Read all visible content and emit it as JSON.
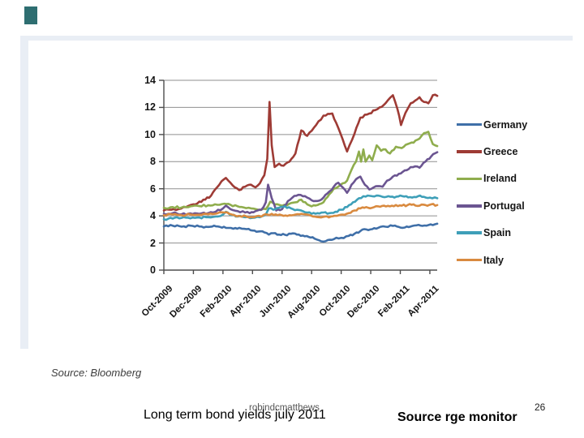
{
  "slide": {
    "accent_square_color": "#2e6e71",
    "frame_color": "#e9eef5",
    "background_color": "#ffffff"
  },
  "chart_data": {
    "type": "line",
    "title": "",
    "xlabel": "",
    "ylabel": "",
    "ylim": [
      0,
      14
    ],
    "yticks": [
      0,
      2,
      4,
      6,
      8,
      10,
      12,
      14
    ],
    "xtick_labels": [
      "Oct-2009",
      "Dec-2009",
      "Feb-2010",
      "Apr-2010",
      "Jun-2010",
      "Aug-2010",
      "Oct-2010",
      "Dec-2010",
      "Feb-2011",
      "Apr-2011"
    ],
    "x_unit": "months_since_Oct_2009_two_months_per_tick",
    "grid": "horizontal",
    "grid_color": "#8f8f8f",
    "axis_color": "#4d4d4d",
    "legend_position": "right",
    "series": [
      {
        "name": "Germany",
        "color": "#3F6FA8",
        "points": [
          [
            0,
            3.22
          ],
          [
            0.6,
            3.28
          ],
          [
            1.2,
            3.2
          ],
          [
            1.8,
            3.28
          ],
          [
            2.4,
            3.22
          ],
          [
            3,
            3.18
          ],
          [
            3.4,
            3.28
          ],
          [
            3.8,
            3.18
          ],
          [
            4.2,
            3.12
          ],
          [
            4.7,
            3.05
          ],
          [
            5.1,
            3.12
          ],
          [
            5.6,
            3.02
          ],
          [
            6,
            2.92
          ],
          [
            6.4,
            2.85
          ],
          [
            6.8,
            2.78
          ],
          [
            7.1,
            2.62
          ],
          [
            7.4,
            2.72
          ],
          [
            7.8,
            2.62
          ],
          [
            8.2,
            2.6
          ],
          [
            8.6,
            2.68
          ],
          [
            9,
            2.62
          ],
          [
            9.4,
            2.55
          ],
          [
            9.8,
            2.45
          ],
          [
            10.2,
            2.32
          ],
          [
            10.5,
            2.2
          ],
          [
            10.8,
            2.1
          ],
          [
            11.1,
            2.22
          ],
          [
            11.5,
            2.28
          ],
          [
            12,
            2.38
          ],
          [
            12.5,
            2.52
          ],
          [
            12.9,
            2.68
          ],
          [
            13.3,
            2.88
          ],
          [
            13.7,
            3.0
          ],
          [
            14.1,
            3.02
          ],
          [
            14.5,
            3.12
          ],
          [
            15,
            3.2
          ],
          [
            15.5,
            3.26
          ],
          [
            15.9,
            3.18
          ],
          [
            16.3,
            3.14
          ],
          [
            16.7,
            3.22
          ],
          [
            17.1,
            3.3
          ],
          [
            17.5,
            3.26
          ],
          [
            17.9,
            3.32
          ],
          [
            18.5,
            3.42
          ]
        ]
      },
      {
        "name": "Greece",
        "color": "#9E3B35",
        "points": [
          [
            0,
            4.4
          ],
          [
            0.5,
            4.45
          ],
          [
            1,
            4.5
          ],
          [
            1.5,
            4.65
          ],
          [
            2,
            4.85
          ],
          [
            2.4,
            5.05
          ],
          [
            2.8,
            5.2
          ],
          [
            3.2,
            5.5
          ],
          [
            3.6,
            6.1
          ],
          [
            3.9,
            6.55
          ],
          [
            4.2,
            6.8
          ],
          [
            4.5,
            6.45
          ],
          [
            4.8,
            6.1
          ],
          [
            5.1,
            5.9
          ],
          [
            5.5,
            6.15
          ],
          [
            5.9,
            6.3
          ],
          [
            6.2,
            6.1
          ],
          [
            6.5,
            6.4
          ],
          [
            6.8,
            7.0
          ],
          [
            7.0,
            8.2
          ],
          [
            7.15,
            12.4
          ],
          [
            7.3,
            9.2
          ],
          [
            7.5,
            7.6
          ],
          [
            7.8,
            7.85
          ],
          [
            8.1,
            7.7
          ],
          [
            8.5,
            8.0
          ],
          [
            8.9,
            8.6
          ],
          [
            9.3,
            10.3
          ],
          [
            9.7,
            9.9
          ],
          [
            10.3,
            10.7
          ],
          [
            10.8,
            11.4
          ],
          [
            11.4,
            11.55
          ],
          [
            11.8,
            10.5
          ],
          [
            12.4,
            8.75
          ],
          [
            12.9,
            10.05
          ],
          [
            13.3,
            11.25
          ],
          [
            13.9,
            11.55
          ],
          [
            14.3,
            11.8
          ],
          [
            14.6,
            12.0
          ],
          [
            14.9,
            12.2
          ],
          [
            15.3,
            12.7
          ],
          [
            15.5,
            12.9
          ],
          [
            15.8,
            11.9
          ],
          [
            16.05,
            10.7
          ],
          [
            16.35,
            11.6
          ],
          [
            16.7,
            12.3
          ],
          [
            17.0,
            12.5
          ],
          [
            17.3,
            12.75
          ],
          [
            17.6,
            12.4
          ],
          [
            17.9,
            12.3
          ],
          [
            18.2,
            12.9
          ],
          [
            18.5,
            12.85
          ]
        ]
      },
      {
        "name": "Ireland",
        "color": "#8FAD4D",
        "points": [
          [
            0,
            4.6
          ],
          [
            0.6,
            4.65
          ],
          [
            1.2,
            4.62
          ],
          [
            1.8,
            4.7
          ],
          [
            2.4,
            4.72
          ],
          [
            3,
            4.78
          ],
          [
            3.6,
            4.82
          ],
          [
            4.1,
            4.9
          ],
          [
            4.5,
            4.82
          ],
          [
            5,
            4.7
          ],
          [
            5.4,
            4.62
          ],
          [
            5.9,
            4.55
          ],
          [
            6.4,
            4.45
          ],
          [
            6.9,
            4.5
          ],
          [
            7.2,
            5.05
          ],
          [
            7.5,
            4.85
          ],
          [
            8,
            4.75
          ],
          [
            8.5,
            4.9
          ],
          [
            8.9,
            5.0
          ],
          [
            9.3,
            5.2
          ],
          [
            9.7,
            4.85
          ],
          [
            10,
            4.7
          ],
          [
            10.4,
            4.8
          ],
          [
            10.8,
            5.0
          ],
          [
            11.2,
            5.6
          ],
          [
            11.5,
            6.0
          ],
          [
            11.8,
            6.15
          ],
          [
            12.1,
            6.4
          ],
          [
            12.4,
            6.6
          ],
          [
            12.7,
            7.4
          ],
          [
            13,
            8.0
          ],
          [
            13.2,
            8.75
          ],
          [
            13.35,
            8.0
          ],
          [
            13.5,
            8.9
          ],
          [
            13.65,
            8.0
          ],
          [
            13.9,
            8.45
          ],
          [
            14.1,
            8.1
          ],
          [
            14.4,
            9.2
          ],
          [
            14.7,
            8.8
          ],
          [
            15,
            8.9
          ],
          [
            15.3,
            8.6
          ],
          [
            15.7,
            9.1
          ],
          [
            16.1,
            9.0
          ],
          [
            16.5,
            9.3
          ],
          [
            16.9,
            9.4
          ],
          [
            17.3,
            9.7
          ],
          [
            17.6,
            10.1
          ],
          [
            17.9,
            10.2
          ],
          [
            18.2,
            9.3
          ],
          [
            18.5,
            9.15
          ]
        ]
      },
      {
        "name": "Portugal",
        "color": "#6B5591",
        "points": [
          [
            0,
            4.15
          ],
          [
            0.6,
            4.2
          ],
          [
            1.2,
            4.12
          ],
          [
            1.8,
            4.18
          ],
          [
            2.4,
            4.15
          ],
          [
            3,
            4.2
          ],
          [
            3.5,
            4.3
          ],
          [
            4,
            4.55
          ],
          [
            4.2,
            4.75
          ],
          [
            4.5,
            4.5
          ],
          [
            5,
            4.35
          ],
          [
            5.5,
            4.25
          ],
          [
            5.8,
            4.2
          ],
          [
            6.2,
            4.35
          ],
          [
            6.6,
            4.45
          ],
          [
            6.9,
            5.0
          ],
          [
            7.05,
            6.3
          ],
          [
            7.3,
            5.3
          ],
          [
            7.6,
            4.4
          ],
          [
            8,
            4.5
          ],
          [
            8.4,
            5.1
          ],
          [
            8.7,
            5.35
          ],
          [
            9.1,
            5.55
          ],
          [
            9.4,
            5.45
          ],
          [
            9.7,
            5.35
          ],
          [
            10,
            5.15
          ],
          [
            10.4,
            5.1
          ],
          [
            10.8,
            5.35
          ],
          [
            11.2,
            5.8
          ],
          [
            11.5,
            6.15
          ],
          [
            11.8,
            6.45
          ],
          [
            12.1,
            6.1
          ],
          [
            12.4,
            5.7
          ],
          [
            12.7,
            6.3
          ],
          [
            13,
            6.7
          ],
          [
            13.3,
            6.9
          ],
          [
            13.6,
            6.3
          ],
          [
            13.9,
            5.95
          ],
          [
            14.2,
            6.1
          ],
          [
            14.5,
            6.2
          ],
          [
            14.8,
            6.15
          ],
          [
            15.1,
            6.6
          ],
          [
            15.5,
            6.9
          ],
          [
            15.9,
            7.1
          ],
          [
            16.3,
            7.35
          ],
          [
            16.7,
            7.6
          ],
          [
            17,
            7.65
          ],
          [
            17.3,
            7.55
          ],
          [
            17.7,
            8.0
          ],
          [
            18.1,
            8.4
          ],
          [
            18.5,
            8.7
          ]
        ]
      },
      {
        "name": "Spain",
        "color": "#3E9FB8",
        "points": [
          [
            0,
            3.75
          ],
          [
            0.6,
            3.8
          ],
          [
            1.2,
            3.85
          ],
          [
            1.8,
            3.82
          ],
          [
            2.4,
            3.88
          ],
          [
            3,
            3.9
          ],
          [
            3.5,
            3.95
          ],
          [
            4,
            4.1
          ],
          [
            4.2,
            4.3
          ],
          [
            4.6,
            4.05
          ],
          [
            5,
            3.95
          ],
          [
            5.5,
            3.9
          ],
          [
            6,
            3.85
          ],
          [
            6.5,
            3.9
          ],
          [
            6.9,
            4.1
          ],
          [
            7.1,
            4.55
          ],
          [
            7.4,
            4.45
          ],
          [
            7.8,
            4.6
          ],
          [
            8.2,
            4.7
          ],
          [
            8.6,
            4.55
          ],
          [
            9,
            4.45
          ],
          [
            9.4,
            4.35
          ],
          [
            9.7,
            4.25
          ],
          [
            10,
            4.15
          ],
          [
            10.4,
            4.2
          ],
          [
            10.8,
            4.25
          ],
          [
            11.2,
            4.2
          ],
          [
            11.6,
            4.3
          ],
          [
            12,
            4.45
          ],
          [
            12.4,
            4.65
          ],
          [
            12.8,
            5.0
          ],
          [
            13.2,
            5.3
          ],
          [
            13.5,
            5.45
          ],
          [
            13.8,
            5.5
          ],
          [
            14.1,
            5.45
          ],
          [
            14.4,
            5.5
          ],
          [
            14.8,
            5.4
          ],
          [
            15.2,
            5.45
          ],
          [
            15.6,
            5.35
          ],
          [
            16,
            5.5
          ],
          [
            16.4,
            5.45
          ],
          [
            16.8,
            5.35
          ],
          [
            17.2,
            5.45
          ],
          [
            17.6,
            5.4
          ],
          [
            18,
            5.35
          ],
          [
            18.5,
            5.3
          ]
        ]
      },
      {
        "name": "Italy",
        "color": "#D98A3F",
        "points": [
          [
            0,
            4.05
          ],
          [
            0.6,
            4.1
          ],
          [
            1.2,
            4.05
          ],
          [
            1.8,
            4.1
          ],
          [
            2.4,
            4.08
          ],
          [
            3,
            4.12
          ],
          [
            3.6,
            4.18
          ],
          [
            4.1,
            4.25
          ],
          [
            4.6,
            4.1
          ],
          [
            5.1,
            4.0
          ],
          [
            5.6,
            3.95
          ],
          [
            6.1,
            3.9
          ],
          [
            6.6,
            3.95
          ],
          [
            7,
            4.1
          ],
          [
            7.3,
            4.15
          ],
          [
            7.7,
            4.05
          ],
          [
            8.1,
            4.0
          ],
          [
            8.5,
            4.05
          ],
          [
            8.9,
            4.1
          ],
          [
            9.3,
            4.15
          ],
          [
            9.7,
            4.1
          ],
          [
            10.1,
            3.95
          ],
          [
            10.5,
            3.9
          ],
          [
            10.9,
            3.95
          ],
          [
            11.3,
            3.95
          ],
          [
            11.7,
            4.0
          ],
          [
            12.1,
            4.1
          ],
          [
            12.5,
            4.2
          ],
          [
            12.9,
            4.4
          ],
          [
            13.3,
            4.55
          ],
          [
            13.7,
            4.65
          ],
          [
            14.1,
            4.6
          ],
          [
            14.5,
            4.7
          ],
          [
            14.9,
            4.75
          ],
          [
            15.3,
            4.7
          ],
          [
            15.7,
            4.8
          ],
          [
            16.1,
            4.75
          ],
          [
            16.5,
            4.8
          ],
          [
            16.9,
            4.85
          ],
          [
            17.3,
            4.75
          ],
          [
            17.7,
            4.8
          ],
          [
            18.1,
            4.85
          ],
          [
            18.5,
            4.8
          ]
        ]
      }
    ]
  },
  "footer": {
    "source_left": "Source: Bloomberg",
    "caption": "Long term bond yields july 2011",
    "watermark": "robindcmatthews",
    "page_number": "26",
    "source_right": "Source rge monitor"
  }
}
